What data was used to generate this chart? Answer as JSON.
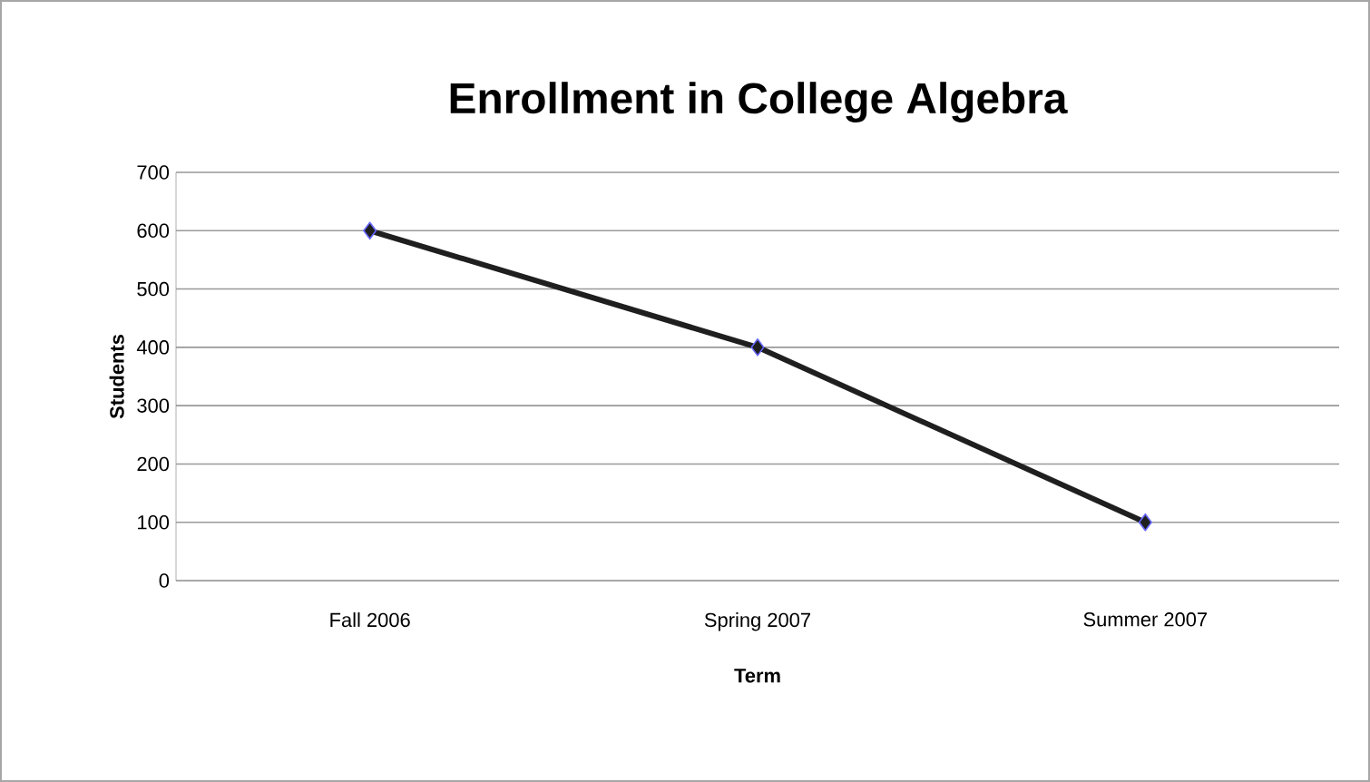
{
  "chart_data": {
    "type": "line",
    "title": "Enrollment in College Algebra",
    "xlabel": "Term",
    "ylabel": "Students",
    "categories": [
      "Fall 2006",
      "Spring 2007",
      "Summer 2007"
    ],
    "series": [
      {
        "color": "#1f1f1f",
        "values": [
          600,
          400,
          100
        ]
      }
    ],
    "ylim": [
      0,
      700
    ],
    "yticks": [
      0,
      100,
      200,
      300,
      400,
      500,
      600,
      700
    ],
    "grid": "y",
    "marker": "diamond",
    "line_style": "solid"
  }
}
